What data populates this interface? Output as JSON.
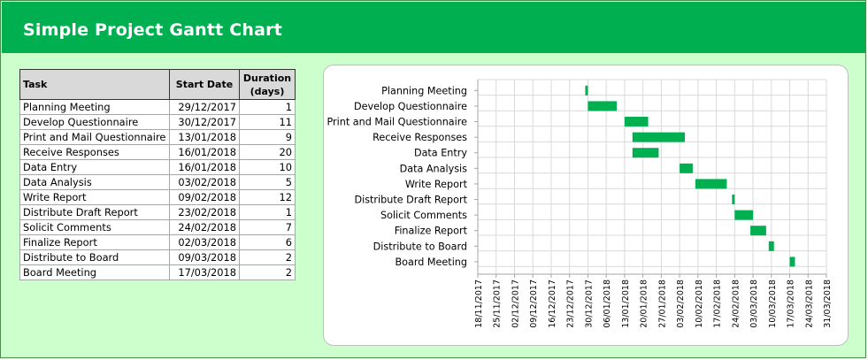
{
  "title": "Simple Project Gantt Chart",
  "table": {
    "headers": {
      "task": "Task",
      "start": "Start Date",
      "duration_line1": "Duration",
      "duration_line2": "(days)"
    },
    "rows": [
      {
        "task": "Planning Meeting",
        "start": "29/12/2017",
        "duration": "1"
      },
      {
        "task": "Develop Questionnaire",
        "start": "30/12/2017",
        "duration": "11"
      },
      {
        "task": "Print and Mail Questionnaire",
        "start": "13/01/2018",
        "duration": "9"
      },
      {
        "task": "Receive Responses",
        "start": "16/01/2018",
        "duration": "20"
      },
      {
        "task": "Data Entry",
        "start": "16/01/2018",
        "duration": "10"
      },
      {
        "task": "Data Analysis",
        "start": "03/02/2018",
        "duration": "5"
      },
      {
        "task": "Write Report",
        "start": "09/02/2018",
        "duration": "12"
      },
      {
        "task": "Distribute Draft Report",
        "start": "23/02/2018",
        "duration": "1"
      },
      {
        "task": "Solicit Comments",
        "start": "24/02/2018",
        "duration": "7"
      },
      {
        "task": "Finalize Report",
        "start": "02/03/2018",
        "duration": "6"
      },
      {
        "task": "Distribute to Board",
        "start": "09/03/2018",
        "duration": "2"
      },
      {
        "task": "Board Meeting",
        "start": "17/03/2018",
        "duration": "2"
      }
    ]
  },
  "chart_data": {
    "type": "bar",
    "orientation": "horizontal-gantt",
    "categories": [
      "Planning Meeting",
      "Develop Questionnaire",
      "Print and Mail Questionnaire",
      "Receive Responses",
      "Data Entry",
      "Data Analysis",
      "Write Report",
      "Distribute Draft Report",
      "Solicit Comments",
      "Finalize Report",
      "Distribute to Board",
      "Board Meeting"
    ],
    "start_dates": [
      "2017-12-29",
      "2017-12-30",
      "2018-01-13",
      "2018-01-16",
      "2018-01-16",
      "2018-02-03",
      "2018-02-09",
      "2018-02-23",
      "2018-02-24",
      "2018-03-02",
      "2018-03-09",
      "2018-03-17"
    ],
    "durations_days": [
      1,
      11,
      9,
      20,
      10,
      5,
      12,
      1,
      7,
      6,
      2,
      2
    ],
    "xlim": [
      "2017-11-18",
      "2018-03-31"
    ],
    "x_tick_labels": [
      "18/11/2017",
      "25/11/2017",
      "02/12/2017",
      "09/12/2017",
      "16/12/2017",
      "23/12/2017",
      "30/12/2017",
      "06/01/2018",
      "13/01/2018",
      "20/01/2018",
      "27/01/2018",
      "03/02/2018",
      "10/02/2018",
      "17/02/2018",
      "24/02/2018",
      "03/03/2018",
      "10/03/2018",
      "17/03/2018",
      "24/03/2018",
      "31/03/2018"
    ],
    "title": "",
    "xlabel": "",
    "ylabel": "",
    "grid": true,
    "legend": "none",
    "bar_color": "#00b050",
    "grid_color": "#d9d9d9"
  }
}
